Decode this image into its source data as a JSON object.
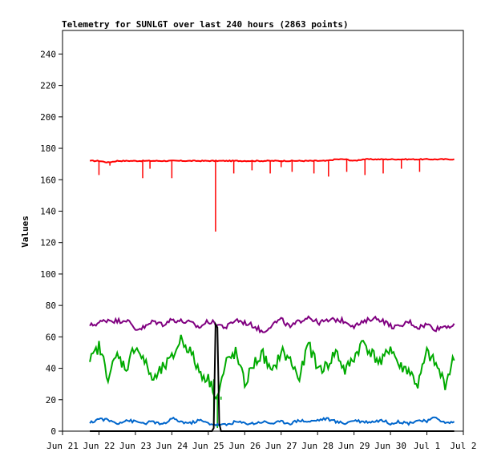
{
  "chart_data": {
    "type": "line",
    "title": "Telemetry for SUNLGT over last 240 hours (2863 points)",
    "xlabel": "",
    "ylabel": "Values",
    "xlim": [
      "Jun 21",
      "Jul 2"
    ],
    "ylim": [
      0,
      255
    ],
    "x_ticks": [
      "Jun 21",
      "Jun 22",
      "Jun 23",
      "Jun 24",
      "Jun 25",
      "Jun 26",
      "Jun 27",
      "Jun 28",
      "Jun 29",
      "Jun 30",
      "Jul 1",
      "Jul 2"
    ],
    "y_ticks": [
      0,
      20,
      40,
      60,
      80,
      100,
      120,
      140,
      160,
      180,
      200,
      220,
      240
    ],
    "grid": false,
    "legend": "none",
    "series": [
      {
        "color": "#ff0000",
        "x": [
          0.75,
          1.0,
          1.25,
          1.5,
          1.75,
          2.0,
          2.25,
          2.5,
          2.75,
          3.0,
          3.25,
          3.5,
          3.75,
          4.0,
          4.25,
          4.5,
          4.75,
          5.0,
          5.25,
          5.5,
          5.75,
          6.0,
          6.25,
          6.5,
          6.75,
          7.0,
          7.25,
          7.5,
          7.75,
          8.0,
          8.25,
          8.5,
          8.75,
          9.0,
          9.25,
          9.5,
          9.75,
          10.0,
          10.25,
          10.5,
          10.75
        ],
        "values": [
          172,
          172,
          171,
          172,
          172,
          172,
          172,
          172,
          172,
          172,
          172,
          172,
          172,
          172,
          172,
          172,
          172,
          172,
          172,
          172,
          172,
          172,
          172,
          172,
          172,
          172,
          172,
          173,
          173,
          172,
          173,
          173,
          173,
          173,
          173,
          173,
          173,
          173,
          173,
          173,
          173
        ],
        "dips": [
          [
            1.0,
            163
          ],
          [
            1.3,
            169
          ],
          [
            2.2,
            161
          ],
          [
            2.4,
            167
          ],
          [
            3.0,
            161
          ],
          [
            4.2,
            127
          ],
          [
            4.7,
            164
          ],
          [
            5.2,
            166
          ],
          [
            5.7,
            164
          ],
          [
            6.0,
            168
          ],
          [
            6.3,
            165
          ],
          [
            6.9,
            164
          ],
          [
            7.3,
            162
          ],
          [
            7.8,
            165
          ],
          [
            8.3,
            163
          ],
          [
            8.8,
            164
          ],
          [
            9.3,
            167
          ],
          [
            9.8,
            165
          ]
        ]
      },
      {
        "color": "#800080",
        "x": [
          0.75,
          1.0,
          1.25,
          1.5,
          1.75,
          2.0,
          2.25,
          2.5,
          2.75,
          3.0,
          3.25,
          3.5,
          3.75,
          4.0,
          4.25,
          4.5,
          4.75,
          5.0,
          5.25,
          5.5,
          5.75,
          6.0,
          6.25,
          6.5,
          6.75,
          7.0,
          7.25,
          7.5,
          7.75,
          8.0,
          8.25,
          8.5,
          8.75,
          9.0,
          9.25,
          9.5,
          9.75,
          10.0,
          10.25,
          10.5,
          10.75
        ],
        "values": [
          67,
          69,
          71,
          70,
          71,
          65,
          66,
          70,
          68,
          71,
          70,
          69,
          66,
          70,
          68,
          66,
          71,
          69,
          67,
          63,
          68,
          71,
          66,
          70,
          73,
          69,
          70,
          71,
          70,
          67,
          69,
          72,
          71,
          67,
          66,
          70,
          66,
          68,
          65,
          67,
          67
        ]
      },
      {
        "color": "#00aa00",
        "x": [
          0.75,
          1.0,
          1.25,
          1.5,
          1.75,
          2.0,
          2.25,
          2.5,
          2.75,
          3.0,
          3.25,
          3.5,
          3.75,
          4.0,
          4.25,
          4.5,
          4.75,
          5.0,
          5.25,
          5.5,
          5.75,
          6.0,
          6.25,
          6.5,
          6.75,
          7.0,
          7.25,
          7.5,
          7.75,
          8.0,
          8.25,
          8.5,
          8.75,
          9.0,
          9.25,
          9.5,
          9.75,
          10.0,
          10.25,
          10.5,
          10.75
        ],
        "values": [
          44,
          54,
          35,
          48,
          40,
          55,
          44,
          32,
          40,
          46,
          59,
          51,
          38,
          33,
          22,
          44,
          50,
          30,
          43,
          49,
          36,
          51,
          45,
          33,
          56,
          40,
          41,
          51,
          38,
          47,
          57,
          49,
          43,
          54,
          41,
          39,
          29,
          50,
          42,
          30,
          47
        ],
        "dips": [
          [
            4.15,
            4
          ],
          [
            4.25,
            2
          ],
          [
            4.35,
            20
          ]
        ]
      },
      {
        "color": "#0066cc",
        "x": [
          0.75,
          1.0,
          1.25,
          1.5,
          1.75,
          2.0,
          2.25,
          2.5,
          2.75,
          3.0,
          3.25,
          3.5,
          3.75,
          4.0,
          4.25,
          4.5,
          4.75,
          5.0,
          5.25,
          5.5,
          5.75,
          6.0,
          6.25,
          6.5,
          6.75,
          7.0,
          7.25,
          7.5,
          7.75,
          8.0,
          8.25,
          8.5,
          8.75,
          9.0,
          9.25,
          9.5,
          9.75,
          10.0,
          10.25,
          10.5,
          10.75
        ],
        "values": [
          5,
          8,
          7,
          5,
          7,
          6,
          5,
          6,
          4,
          8,
          6,
          5,
          7,
          5,
          4,
          4,
          6,
          5,
          5,
          6,
          5,
          6,
          5,
          7,
          6,
          7,
          8,
          6,
          5,
          7,
          6,
          6,
          7,
          5,
          6,
          5,
          7,
          6,
          9,
          5,
          6
        ]
      },
      {
        "color": "#000000",
        "x": [
          0.75,
          4.1,
          4.15,
          4.2,
          4.25,
          4.3,
          4.35,
          10.75
        ],
        "values": [
          0,
          0,
          2,
          68,
          66,
          5,
          0,
          0
        ]
      }
    ]
  }
}
